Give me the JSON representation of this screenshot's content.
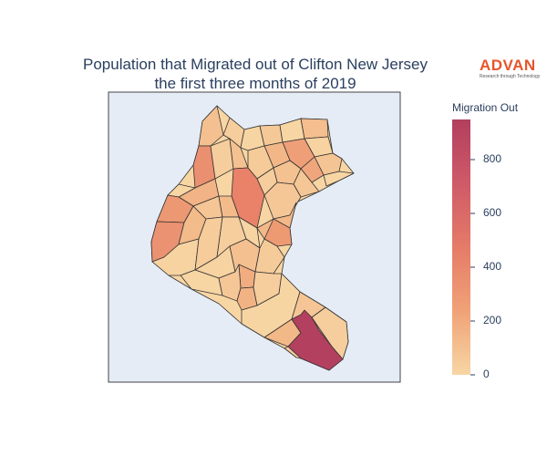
{
  "title_lines": [
    "Population that Migrated out of Clifton New Jersey",
    "the first three months of 2019"
  ],
  "logo": {
    "name": "ADVAN",
    "tagline": "Research through Technology"
  },
  "colorbar": {
    "title": "Migration Out",
    "min": 0,
    "max": 950,
    "ticks": [
      "0",
      "200",
      "400",
      "600",
      "800"
    ],
    "tick_values": [
      0,
      200,
      400,
      600,
      800
    ],
    "colorscale": [
      "#f7d6a4",
      "#f0a277",
      "#e57b68",
      "#cf5a68",
      "#b23f5e"
    ]
  },
  "map": {
    "background": "#e5ecf6",
    "frame": "#444444",
    "region_border": "#333333"
  }
}
